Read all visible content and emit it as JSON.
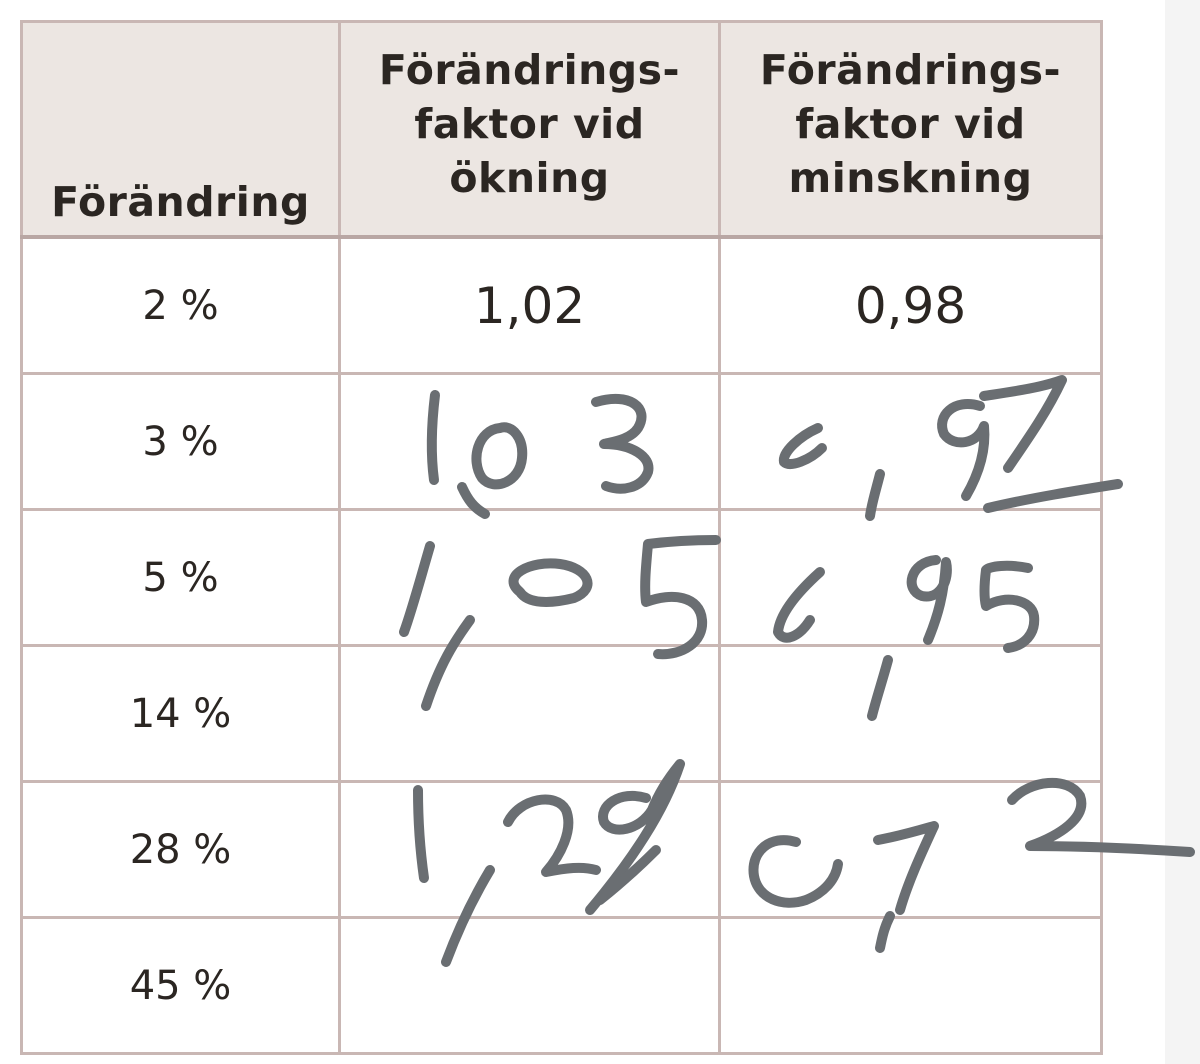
{
  "table": {
    "headers": {
      "change": "Förändring",
      "increase": [
        "Förändrings-",
        "faktor vid",
        "ökning"
      ],
      "decrease": [
        "Förändrings-",
        "faktor vid",
        "minskning"
      ]
    },
    "rows": [
      {
        "change": "2 %",
        "increase_factor": "1,02",
        "decrease_factor": "0,98"
      },
      {
        "change": "3 %",
        "increase_factor": "",
        "decrease_factor": ""
      },
      {
        "change": "5 %",
        "increase_factor": "",
        "decrease_factor": ""
      },
      {
        "change": "14 %",
        "increase_factor": "",
        "decrease_factor": ""
      },
      {
        "change": "28 %",
        "increase_factor": "",
        "decrease_factor": ""
      },
      {
        "change": "45 %",
        "increase_factor": "",
        "decrease_factor": ""
      }
    ],
    "border_color": "#c9b7b4",
    "header_background": "#ece6e2"
  },
  "handwritten_answers": {
    "ink_color": "#6a6e72",
    "entries": [
      {
        "row": "3 %",
        "increase": "1,03",
        "decrease": "0,97"
      },
      {
        "row": "5 %",
        "increase": "1,05",
        "decrease": "0,95"
      },
      {
        "row": "28 %",
        "increase": "1,28",
        "decrease": "0,72"
      }
    ]
  }
}
